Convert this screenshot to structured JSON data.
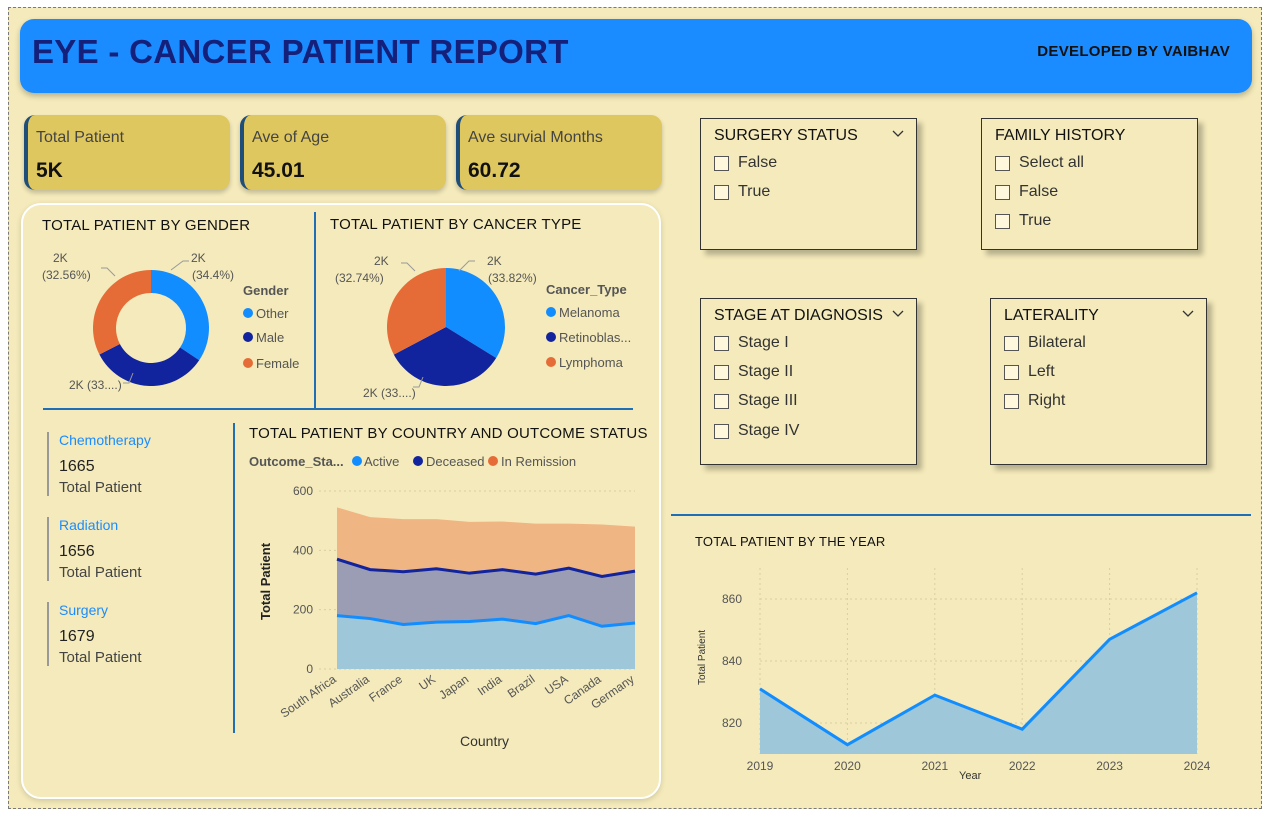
{
  "header": {
    "title": "EYE - CANCER PATIENT REPORT",
    "developer": "DEVELOPED BY VAIBHAV"
  },
  "kpis": [
    {
      "label": "Total Patient",
      "value": "5K"
    },
    {
      "label": "Ave of Age",
      "value": "45.01"
    },
    {
      "label": "Ave survial Months",
      "value": "60.72"
    }
  ],
  "gender_chart": {
    "title": "TOTAL PATIENT BY GENDER",
    "legend_title": "Gender",
    "labels": {
      "other": "2K\n(34.4%)",
      "female": "2K\n(32.56%)",
      "male": "2K (33...)"
    },
    "label_lines": {
      "other_1": "2K",
      "other_2": "(34.4%)",
      "female_1": "2K",
      "female_2": "(32.56%)",
      "male": "2K (33....)"
    },
    "legend": [
      "Other",
      "Male",
      "Female"
    ]
  },
  "cancer_chart": {
    "title": "TOTAL PATIENT BY CANCER TYPE",
    "legend_title": "Cancer_Type",
    "label_lines": {
      "mel_1": "2K",
      "mel_2": "(33.82%)",
      "lym_1": "2K",
      "lym_2": "(32.74%)",
      "ret": "2K (33....)"
    },
    "legend": [
      "Melanoma",
      "Retinoblas...",
      "Lymphoma"
    ]
  },
  "treatments": [
    {
      "name": "Chemotherapy",
      "value": "1665",
      "sub": "Total Patient"
    },
    {
      "name": "Radiation",
      "value": "1656",
      "sub": "Total Patient"
    },
    {
      "name": "Surgery",
      "value": "1679",
      "sub": "Total Patient"
    }
  ],
  "country_chart": {
    "title": "TOTAL PATIENT BY COUNTRY AND OUTCOME STATUS",
    "legend_title": "Outcome_Sta...",
    "legend": [
      "Active",
      "Deceased",
      "In Remission"
    ],
    "ylabel": "Total Patient",
    "xlabel": "Country",
    "yticks": [
      "0",
      "200",
      "400",
      "600"
    ]
  },
  "year_chart": {
    "title": "TOTAL PATIENT BY THE YEAR",
    "ylabel": "Total Patient",
    "xlabel": "Year",
    "yticks": [
      "820",
      "840",
      "860"
    ]
  },
  "slicers": {
    "surgery": {
      "title": "SURGERY STATUS",
      "items": [
        "False",
        "True"
      ]
    },
    "family": {
      "title": "FAMILY HISTORY",
      "items": [
        "Select all",
        "False",
        "True"
      ]
    },
    "stage": {
      "title": "STAGE AT DIAGNOSIS",
      "items": [
        "Stage I",
        "Stage II",
        "Stage III",
        "Stage IV"
      ]
    },
    "laterality": {
      "title": "LATERALITY",
      "items": [
        "Bilateral",
        "Left",
        "Right"
      ]
    }
  },
  "colors": {
    "active": "#118dff",
    "deceased": "#12239e",
    "remission": "#e66c37",
    "header": "#1a8cff",
    "kpi": "#dfc75f"
  },
  "chart_data": [
    {
      "type": "pie",
      "title": "TOTAL PATIENT BY GENDER",
      "categories": [
        "Other",
        "Male",
        "Female"
      ],
      "values": [
        34.4,
        33.04,
        32.56
      ],
      "unit": "percent",
      "donut": true
    },
    {
      "type": "pie",
      "title": "TOTAL PATIENT BY CANCER TYPE",
      "categories": [
        "Melanoma",
        "Retinoblastoma",
        "Lymphoma"
      ],
      "values": [
        33.82,
        33.44,
        32.74
      ],
      "unit": "percent"
    },
    {
      "type": "area",
      "title": "TOTAL PATIENT BY COUNTRY AND OUTCOME STATUS",
      "stacked": true,
      "categories": [
        "South Africa",
        "Australia",
        "France",
        "UK",
        "Japan",
        "India",
        "Brazil",
        "USA",
        "Canada",
        "Germany"
      ],
      "series": [
        {
          "name": "Active",
          "values": [
            180,
            170,
            150,
            158,
            160,
            168,
            153,
            180,
            144,
            155
          ]
        },
        {
          "name": "Deceased",
          "values": [
            190,
            165,
            178,
            180,
            163,
            167,
            167,
            160,
            168,
            175
          ]
        },
        {
          "name": "In Remission",
          "values": [
            175,
            177,
            177,
            167,
            173,
            162,
            170,
            150,
            175,
            150
          ]
        }
      ],
      "xlabel": "Country",
      "ylabel": "Total Patient",
      "ylim": [
        0,
        600
      ]
    },
    {
      "type": "area",
      "title": "TOTAL PATIENT BY THE YEAR",
      "categories": [
        "2019",
        "2020",
        "2021",
        "2022",
        "2023",
        "2024"
      ],
      "values": [
        831,
        813,
        829,
        818,
        847,
        862
      ],
      "xlabel": "Year",
      "ylabel": "Total Patient",
      "ylim": [
        810,
        870
      ]
    }
  ]
}
